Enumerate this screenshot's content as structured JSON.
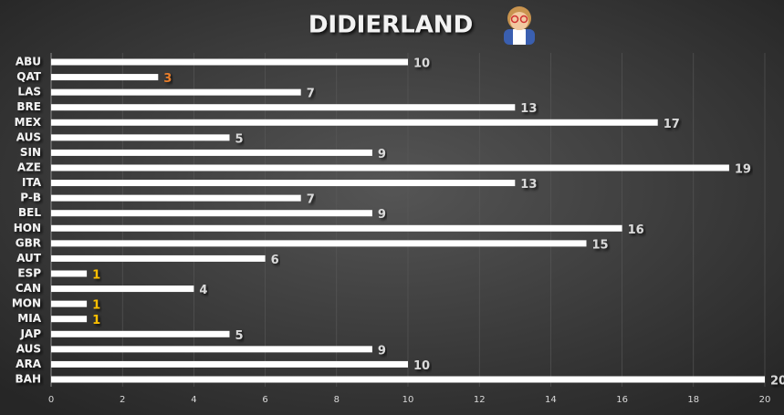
{
  "chart_data": {
    "type": "barh",
    "title": "DIDIERLAND",
    "categories": [
      "ABU",
      "QAT",
      "LAS",
      "BRE",
      "MEX",
      "AUS",
      "SIN",
      "AZE",
      "ITA",
      "P-B",
      "BEL",
      "HON",
      "GBR",
      "AUT",
      "ESP",
      "CAN",
      "MON",
      "MIA",
      "JAP",
      "AUS",
      "ARA",
      "BAH"
    ],
    "values": [
      10,
      3,
      7,
      13,
      17,
      5,
      9,
      19,
      13,
      7,
      9,
      16,
      15,
      6,
      1,
      4,
      1,
      1,
      5,
      9,
      10,
      20
    ],
    "color": "#ffffff",
    "value_label_colors": [
      "#d9d9d9",
      "#e87d2b",
      "#d9d9d9",
      "#d9d9d9",
      "#d9d9d9",
      "#d9d9d9",
      "#d9d9d9",
      "#d9d9d9",
      "#d9d9d9",
      "#d9d9d9",
      "#d9d9d9",
      "#d9d9d9",
      "#d9d9d9",
      "#d9d9d9",
      "#ffc000",
      "#d9d9d9",
      "#ffc000",
      "#ffc000",
      "#d9d9d9",
      "#d9d9d9",
      "#d9d9d9",
      "#d9d9d9"
    ],
    "xlim": [
      0,
      20
    ],
    "xticks": [
      0,
      2,
      4,
      6,
      8,
      10,
      12,
      14,
      16,
      18,
      20
    ],
    "grid": true
  }
}
